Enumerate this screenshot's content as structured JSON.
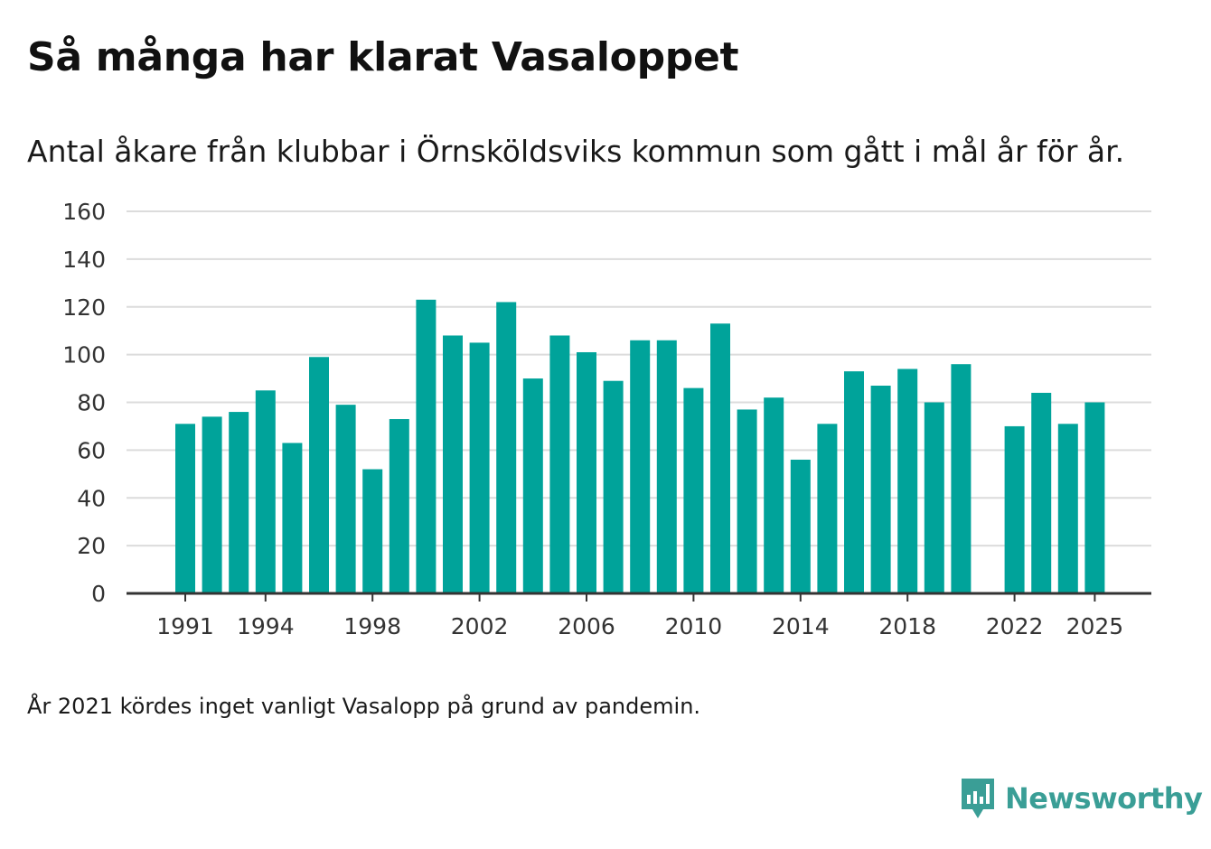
{
  "title": "Så många har klarat Vasaloppet",
  "subtitle": "Antal åkare från klubbar i Örnsköldsviks kommun som gått i mål år för år.",
  "note": "År 2021 kördes inget vanligt Vasalopp på grund av pandemin.",
  "brand": {
    "name": "Newsworthy",
    "color": "#3a9e96"
  },
  "colors": {
    "bar": "#00a39a",
    "grid": "#dcdcdc",
    "axis": "#333333"
  },
  "chart_data": {
    "type": "bar",
    "title": "Så många har klarat Vasaloppet",
    "xlabel": "",
    "ylabel": "",
    "ylim": [
      0,
      160
    ],
    "yticks": [
      0,
      20,
      40,
      60,
      80,
      100,
      120,
      140,
      160
    ],
    "xticks": [
      1991,
      1994,
      1998,
      2002,
      2006,
      2010,
      2014,
      2018,
      2022,
      2025
    ],
    "categories": [
      1991,
      1992,
      1993,
      1994,
      1995,
      1996,
      1997,
      1998,
      1999,
      2000,
      2001,
      2002,
      2003,
      2004,
      2005,
      2006,
      2007,
      2008,
      2009,
      2010,
      2011,
      2012,
      2013,
      2014,
      2015,
      2016,
      2017,
      2018,
      2019,
      2020,
      2021,
      2022,
      2023,
      2024,
      2025
    ],
    "values": [
      71,
      74,
      76,
      85,
      63,
      99,
      79,
      52,
      73,
      123,
      108,
      105,
      122,
      90,
      108,
      101,
      89,
      106,
      106,
      86,
      113,
      77,
      82,
      56,
      71,
      93,
      87,
      94,
      80,
      96,
      null,
      70,
      84,
      71,
      80
    ]
  }
}
